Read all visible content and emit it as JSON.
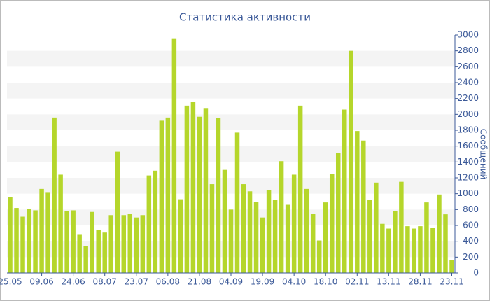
{
  "chart_data": {
    "type": "bar",
    "title": "Статистика активности",
    "y_label": "Сообщений",
    "categories": [
      "25.05",
      null,
      null,
      null,
      null,
      "09.06",
      null,
      null,
      null,
      null,
      "24.06",
      null,
      null,
      null,
      null,
      "08.07",
      null,
      null,
      null,
      null,
      "23.07",
      null,
      null,
      null,
      null,
      "06.08",
      null,
      null,
      null,
      null,
      "21.08",
      null,
      null,
      null,
      null,
      "04.09",
      null,
      null,
      null,
      null,
      "19.09",
      null,
      null,
      null,
      null,
      "04.10",
      null,
      null,
      null,
      null,
      "18.10",
      null,
      null,
      null,
      null,
      "02.11",
      null,
      null,
      null,
      null,
      "13.11",
      null,
      null,
      null,
      null,
      "28.11",
      null,
      null,
      null,
      null,
      "23.11"
    ],
    "values": [
      960,
      820,
      710,
      810,
      790,
      1060,
      1020,
      1960,
      1240,
      780,
      790,
      490,
      340,
      770,
      540,
      510,
      730,
      1530,
      730,
      750,
      700,
      730,
      1230,
      1290,
      1920,
      1960,
      2950,
      930,
      2110,
      2160,
      1970,
      2080,
      1120,
      1950,
      1300,
      800,
      1770,
      1120,
      1030,
      900,
      700,
      1050,
      920,
      1410,
      860,
      1240,
      2110,
      1060,
      750,
      410,
      890,
      1250,
      1510,
      2060,
      2800,
      1790,
      1670,
      920,
      1140,
      620,
      560,
      780,
      1150,
      590,
      560,
      590,
      890,
      570,
      990,
      740,
      160
    ],
    "color": "#b5d62b",
    "ylim": [
      0,
      3000
    ],
    "yticks": [
      0,
      200,
      400,
      600,
      800,
      1000,
      1200,
      1400,
      1600,
      1800,
      2000,
      2200,
      2400,
      2600,
      2800,
      3000
    ],
    "grid": true
  }
}
